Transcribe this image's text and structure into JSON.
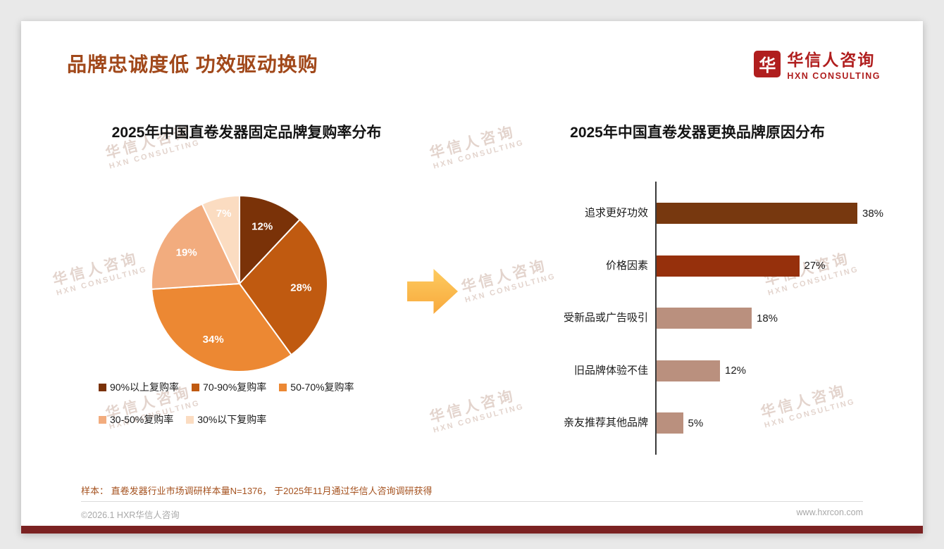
{
  "slide": {
    "title": "品牌忠诚度低 功效驱动换购",
    "footnote": "样本： 直卷发器行业市场调研样本量N=1376， 于2025年11月通过华信人咨询调研获得",
    "footer_left": "©2026.1 HXR华信人咨询",
    "footer_right": "www.hxrcon.com"
  },
  "logo": {
    "cn": "华信人咨询",
    "en": "HXN CONSULTING",
    "mark": "华"
  },
  "watermark": {
    "cn": "华信人咨询",
    "en": "HXN CONSULTING"
  },
  "colors": {
    "title": "#A1481A",
    "brand_red": "#B01E1E",
    "arrow": "#F8A93C",
    "bottom_bar": "#7B2222",
    "page_bg": "#E9E9E9"
  },
  "chart_data": [
    {
      "type": "pie",
      "title": "2025年中国直卷发器固定品牌复购率分布",
      "labels": [
        "90%以上复购率",
        "70-90%复购率",
        "50-70%复购率",
        "30-50%复购率",
        "30%以下复购率"
      ],
      "values": [
        12,
        28,
        34,
        19,
        7
      ],
      "value_labels": [
        "12%",
        "28%",
        "34%",
        "19%",
        "7%"
      ],
      "colors": [
        "#7A3208",
        "#C05A10",
        "#EC8833",
        "#F2AC7E",
        "#FBDCC1"
      ],
      "legend_position": "bottom",
      "start_angle_deg": 0,
      "direction": "clockwise"
    },
    {
      "type": "bar",
      "orientation": "horizontal",
      "title": "2025年中国直卷发器更换品牌原因分布",
      "categories": [
        "追求更好功效",
        "价格因素",
        "受新品或广告吸引",
        "旧品牌体验不佳",
        "亲友推荐其他品牌"
      ],
      "values": [
        38,
        27,
        18,
        12,
        5
      ],
      "value_labels": [
        "38%",
        "27%",
        "18%",
        "12%",
        "5%"
      ],
      "colors": [
        "#77380F",
        "#96300C",
        "#BA907E",
        "#BA907E",
        "#BA907E"
      ],
      "xlim": [
        0,
        40
      ],
      "grid": false,
      "legend_position": "none"
    }
  ]
}
